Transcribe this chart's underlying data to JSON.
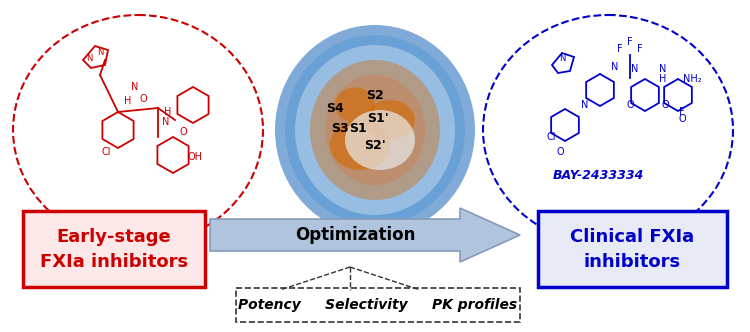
{
  "title": "",
  "bg_color": "#ffffff",
  "left_box": {
    "text_line1": "Early-stage",
    "text_line2": "FXIa inhibitors",
    "box_facecolor": "#fce8e8",
    "box_edgecolor": "#cc0000",
    "text_color": "#cc0000",
    "fontsize": 13,
    "fontweight": "bold"
  },
  "right_box": {
    "text_line1": "Clinical FXIa",
    "text_line2": "inhibitors",
    "box_facecolor": "#e8eaf6",
    "box_edgecolor": "#0000cc",
    "text_color": "#0000cc",
    "fontsize": 13,
    "fontweight": "bold"
  },
  "arrow": {
    "label": "Optimization",
    "label_fontsize": 12,
    "label_color": "#000000",
    "facecolor": "#b0c4de",
    "edgecolor": "#8899bb"
  },
  "bottom_box": {
    "text": "Potency     Selectivity     PK profiles",
    "fontsize": 10,
    "edgecolor": "#333333",
    "facecolor": "#ffffff",
    "fontstyle": "italic"
  },
  "left_ellipse": {
    "edgecolor": "#cc0000",
    "facecolor": "#ffffff",
    "linestyle": "dashed"
  },
  "right_ellipse": {
    "edgecolor": "#0000cc",
    "facecolor": "#ffffff",
    "linestyle": "dashed"
  },
  "bay_label": {
    "text": "BAY-2433334",
    "color": "#0000cc",
    "fontstyle": "italic",
    "fontweight": "bold",
    "fontsize": 9
  },
  "site_labels": [
    "S4",
    "S2",
    "S3",
    "S1",
    "S1'",
    "S2'"
  ],
  "site_label_color": "#000000",
  "site_label_fontsize": 9
}
